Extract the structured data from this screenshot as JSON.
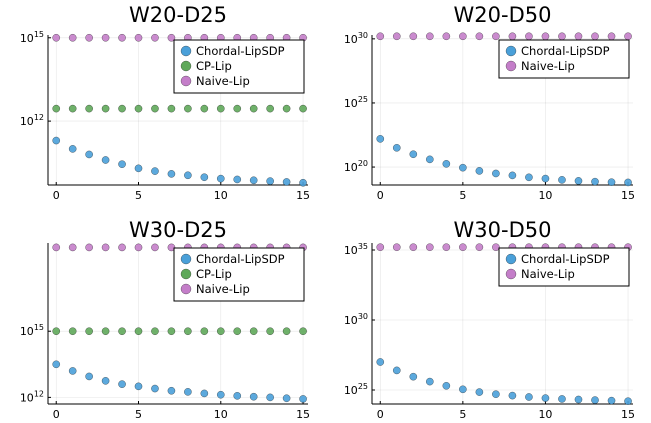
{
  "colors": {
    "Chordal-LipSDP": "#4aa0d9",
    "CP-Lip": "#5fa85a",
    "Naive-Lip": "#c47ec9"
  },
  "chart_data": [
    {
      "type": "scatter",
      "title": "W20-D25",
      "log_y": true,
      "ylim_log10": [
        9.7,
        15.1
      ],
      "xlim": [
        -0.5,
        15.3
      ],
      "xticks": [
        0,
        5,
        10,
        15
      ],
      "yticks": [
        {
          "base": "10",
          "exp": "12",
          "log10": 12
        },
        {
          "base": "10",
          "exp": "15",
          "log10": 15
        }
      ],
      "x": [
        0,
        1,
        2,
        3,
        4,
        5,
        6,
        7,
        8,
        9,
        10,
        11,
        12,
        13,
        14,
        15
      ],
      "series": [
        {
          "name": "Chordal-LipSDP",
          "log10_values": [
            11.3,
            11.0,
            10.8,
            10.6,
            10.45,
            10.3,
            10.2,
            10.1,
            10.05,
            9.98,
            9.93,
            9.9,
            9.87,
            9.84,
            9.81,
            9.78
          ]
        },
        {
          "name": "CP-Lip",
          "log10_values": [
            12.45,
            12.45,
            12.45,
            12.45,
            12.45,
            12.45,
            12.45,
            12.45,
            12.45,
            12.45,
            12.45,
            12.45,
            12.45,
            12.45,
            12.45,
            12.45
          ]
        },
        {
          "name": "Naive-Lip",
          "log10_values": [
            15,
            15,
            15,
            15,
            15,
            15,
            15,
            15,
            15,
            15,
            15,
            15,
            15,
            15,
            15,
            15
          ]
        }
      ],
      "legend": [
        "Chordal-LipSDP",
        "CP-Lip",
        "Naive-Lip"
      ],
      "legend_position": "top-right",
      "grid": true
    },
    {
      "type": "scatter",
      "title": "W20-D50",
      "log_y": true,
      "ylim_log10": [
        18.6,
        30.3
      ],
      "xlim": [
        -0.5,
        15.3
      ],
      "xticks": [
        0,
        5,
        10,
        15
      ],
      "yticks": [
        {
          "base": "10",
          "exp": "20",
          "log10": 20
        },
        {
          "base": "10",
          "exp": "25",
          "log10": 25
        },
        {
          "base": "10",
          "exp": "30",
          "log10": 30
        }
      ],
      "x": [
        0,
        1,
        2,
        3,
        4,
        5,
        6,
        7,
        8,
        9,
        10,
        11,
        12,
        13,
        14,
        15
      ],
      "series": [
        {
          "name": "Chordal-LipSDP",
          "log10_values": [
            22.2,
            21.5,
            21.0,
            20.6,
            20.25,
            19.95,
            19.7,
            19.5,
            19.35,
            19.2,
            19.1,
            19.0,
            18.92,
            18.86,
            18.82,
            18.8
          ]
        },
        {
          "name": "Naive-Lip",
          "log10_values": [
            30.2,
            30.2,
            30.2,
            30.2,
            30.2,
            30.2,
            30.2,
            30.2,
            30.2,
            30.2,
            30.2,
            30.2,
            30.2,
            30.2,
            30.2,
            30.2
          ]
        }
      ],
      "legend": [
        "Chordal-LipSDP",
        "Naive-Lip"
      ],
      "legend_position": "top-right",
      "grid": true
    },
    {
      "type": "scatter",
      "title": "W30-D25",
      "log_y": true,
      "ylim_log10": [
        11.7,
        19.0
      ],
      "xlim": [
        -0.5,
        15.3
      ],
      "xticks": [
        0,
        5,
        10,
        15
      ],
      "yticks": [
        {
          "base": "10",
          "exp": "12",
          "log10": 12
        },
        {
          "base": "10",
          "exp": "15",
          "log10": 15
        }
      ],
      "x": [
        0,
        1,
        2,
        3,
        4,
        5,
        6,
        7,
        8,
        9,
        10,
        11,
        12,
        13,
        14,
        15
      ],
      "series": [
        {
          "name": "Chordal-LipSDP",
          "log10_values": [
            13.5,
            13.2,
            12.95,
            12.75,
            12.6,
            12.5,
            12.4,
            12.3,
            12.25,
            12.18,
            12.12,
            12.07,
            12.03,
            12.0,
            11.96,
            11.93
          ]
        },
        {
          "name": "CP-Lip",
          "log10_values": [
            15,
            15,
            15,
            15,
            15,
            15,
            15,
            15,
            15,
            15,
            15,
            15,
            15,
            15,
            15,
            15
          ]
        },
        {
          "name": "Naive-Lip",
          "log10_values": [
            18.8,
            18.8,
            18.8,
            18.8,
            18.8,
            18.8,
            18.8,
            18.8,
            18.8,
            18.8,
            18.8,
            18.8,
            18.8,
            18.8,
            18.8,
            18.8
          ]
        }
      ],
      "legend": [
        "Chordal-LipSDP",
        "CP-Lip",
        "Naive-Lip"
      ],
      "legend_position": "top-right",
      "grid": true
    },
    {
      "type": "scatter",
      "title": "W30-D50",
      "log_y": true,
      "ylim_log10": [
        24.0,
        35.5
      ],
      "xlim": [
        -0.5,
        15.3
      ],
      "xticks": [
        0,
        5,
        10,
        15
      ],
      "yticks": [
        {
          "base": "10",
          "exp": "25",
          "log10": 25
        },
        {
          "base": "10",
          "exp": "30",
          "log10": 30
        },
        {
          "base": "10",
          "exp": "35",
          "log10": 35
        }
      ],
      "x": [
        0,
        1,
        2,
        3,
        4,
        5,
        6,
        7,
        8,
        9,
        10,
        11,
        12,
        13,
        14,
        15
      ],
      "series": [
        {
          "name": "Chordal-LipSDP",
          "log10_values": [
            27.0,
            26.4,
            25.95,
            25.6,
            25.3,
            25.05,
            24.85,
            24.7,
            24.6,
            24.5,
            24.42,
            24.36,
            24.32,
            24.28,
            24.24,
            24.2
          ]
        },
        {
          "name": "Naive-Lip",
          "log10_values": [
            35.2,
            35.2,
            35.2,
            35.2,
            35.2,
            35.2,
            35.2,
            35.2,
            35.2,
            35.2,
            35.2,
            35.2,
            35.2,
            35.2,
            35.2,
            35.2
          ]
        }
      ],
      "legend": [
        "Chordal-LipSDP",
        "Naive-Lip"
      ],
      "legend_position": "top-right",
      "grid": true
    }
  ]
}
